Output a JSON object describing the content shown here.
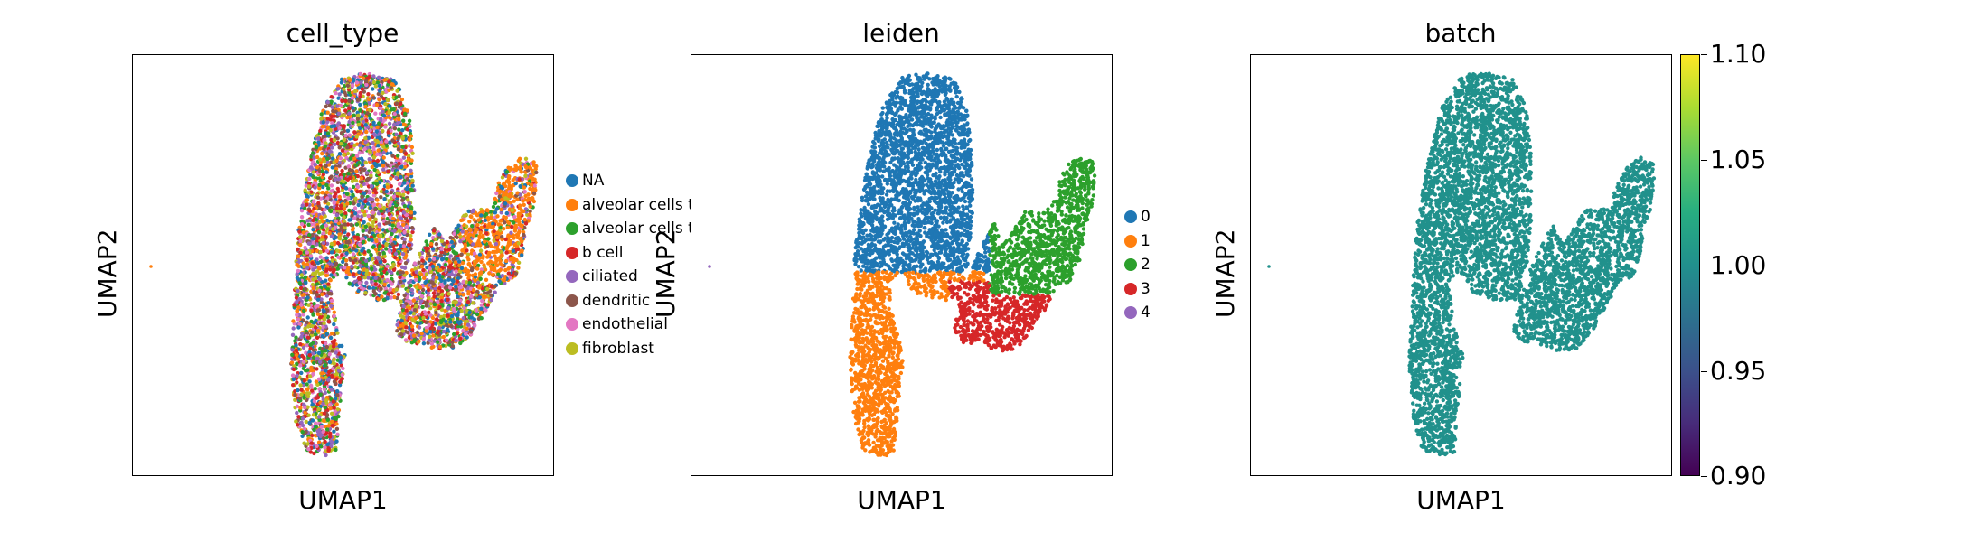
{
  "chart_data": [
    {
      "type": "scatter",
      "title": "cell_type",
      "xlabel": "UMAP1",
      "ylabel": "UMAP2",
      "legend_placement": "right",
      "series": [
        {
          "name": "NA",
          "color": "#1f77b4"
        },
        {
          "name": "alveolar cells t",
          "color": "#ff7f0e"
        },
        {
          "name": "alveolar cells t",
          "color": "#2ca02c"
        },
        {
          "name": "b cell",
          "color": "#d62728"
        },
        {
          "name": "ciliated",
          "color": "#9467bd"
        },
        {
          "name": "dendritic",
          "color": "#8c564b"
        },
        {
          "name": "endothelial",
          "color": "#e377c2"
        },
        {
          "name": "fibroblast",
          "color": "#bcbd22"
        }
      ]
    },
    {
      "type": "scatter",
      "title": "leiden",
      "xlabel": "UMAP1",
      "ylabel": "UMAP2",
      "legend_placement": "right",
      "series": [
        {
          "name": "0",
          "color": "#1f77b4"
        },
        {
          "name": "1",
          "color": "#ff7f0e"
        },
        {
          "name": "2",
          "color": "#2ca02c"
        },
        {
          "name": "3",
          "color": "#d62728"
        },
        {
          "name": "4",
          "color": "#9467bd"
        }
      ]
    },
    {
      "type": "scatter",
      "title": "batch",
      "xlabel": "UMAP1",
      "ylabel": "UMAP2",
      "point_color": "#21918c",
      "colorbar": {
        "colormap": "viridis",
        "range": [
          0.9,
          1.1
        ],
        "ticks": [
          "1.10",
          "1.05",
          "1.00",
          "0.95",
          "0.90"
        ]
      }
    }
  ]
}
